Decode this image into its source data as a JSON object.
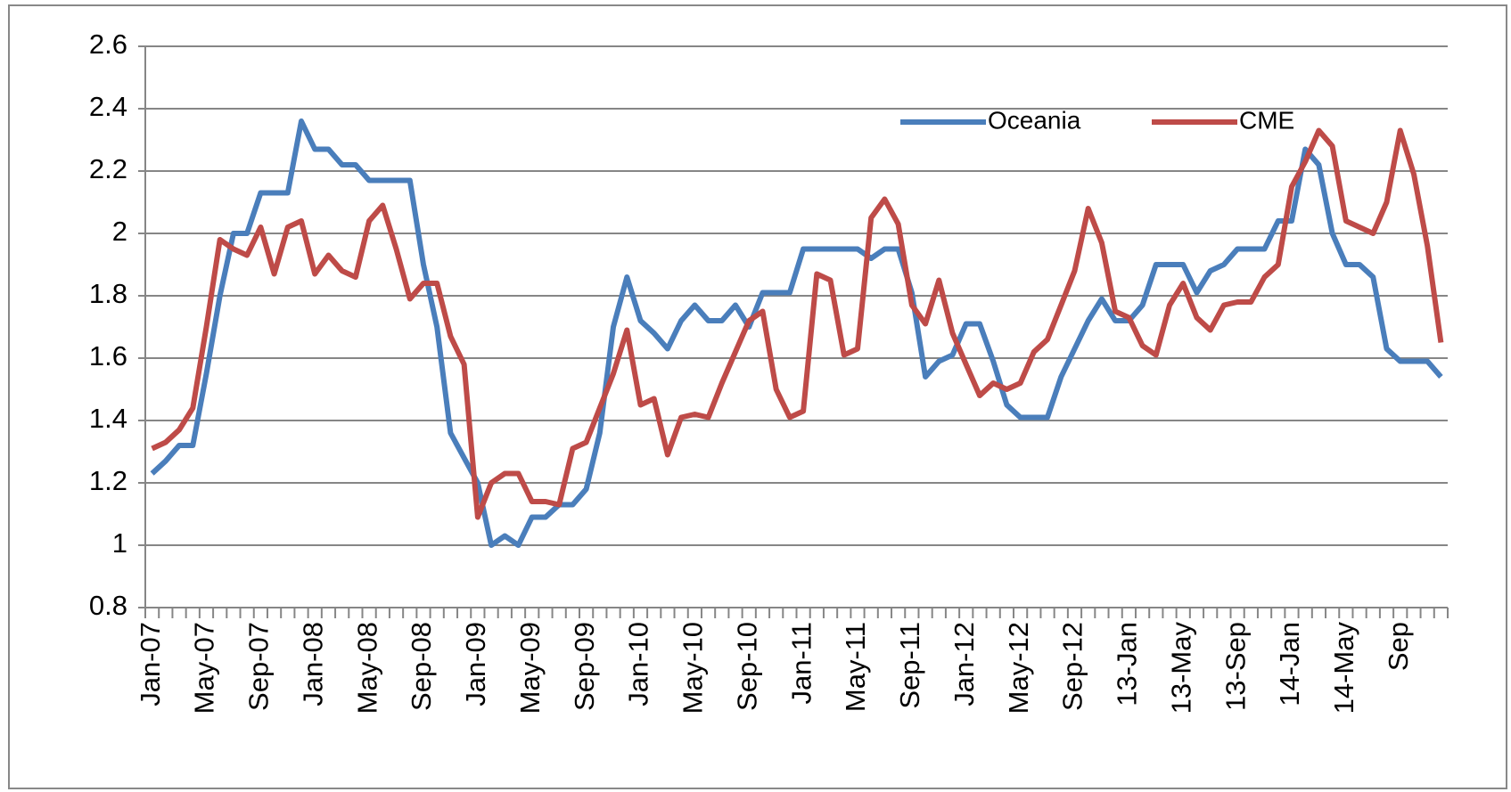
{
  "chart_data": {
    "type": "line",
    "categories": [
      "Jan-07",
      null,
      null,
      null,
      "May-07",
      null,
      null,
      null,
      "Sep-07",
      null,
      null,
      null,
      "Jan-08",
      null,
      null,
      null,
      "May-08",
      null,
      null,
      null,
      "Sep-08",
      null,
      null,
      null,
      "Jan-09",
      null,
      null,
      null,
      "May-09",
      null,
      null,
      null,
      "Sep-09",
      null,
      null,
      null,
      "Jan-10",
      null,
      null,
      null,
      "May-10",
      null,
      null,
      null,
      "Sep-10",
      null,
      null,
      null,
      "Jan-11",
      null,
      null,
      null,
      "May-11",
      null,
      null,
      null,
      "Sep-11",
      null,
      null,
      null,
      "Jan-12",
      null,
      null,
      null,
      "May-12",
      null,
      null,
      null,
      "Sep-12",
      null,
      null,
      null,
      "13-Jan",
      null,
      null,
      null,
      "13-May",
      null,
      null,
      null,
      "13-Sep",
      null,
      null,
      null,
      "14-Jan",
      null,
      null,
      null,
      "14-May",
      null,
      null,
      null,
      "Sep",
      null,
      null,
      null
    ],
    "series": [
      {
        "name": "Oceania",
        "color": "#4a7ebb",
        "values": [
          1.23,
          1.27,
          1.32,
          1.32,
          1.55,
          1.8,
          2.0,
          2.0,
          2.13,
          2.13,
          2.13,
          2.36,
          2.27,
          2.27,
          2.22,
          2.22,
          2.17,
          2.17,
          2.17,
          2.17,
          1.9,
          1.7,
          1.36,
          1.28,
          1.2,
          1.0,
          1.03,
          1.0,
          1.09,
          1.09,
          1.13,
          1.13,
          1.18,
          1.36,
          1.7,
          1.86,
          1.72,
          1.68,
          1.63,
          1.72,
          1.77,
          1.72,
          1.72,
          1.77,
          1.7,
          1.81,
          1.81,
          1.81,
          1.95,
          1.95,
          1.95,
          1.95,
          1.95,
          1.92,
          1.95,
          1.95,
          1.81,
          1.54,
          1.59,
          1.61,
          1.71,
          1.71,
          1.59,
          1.45,
          1.41,
          1.41,
          1.41,
          1.54,
          1.63,
          1.72,
          1.79,
          1.72,
          1.72,
          1.77,
          1.9,
          1.9,
          1.9,
          1.81,
          1.88,
          1.9,
          1.95,
          1.95,
          1.95,
          2.04,
          2.04,
          2.27,
          2.22,
          2.0,
          1.9,
          1.9,
          1.86,
          1.63,
          1.59,
          1.59,
          1.59,
          1.54
        ]
      },
      {
        "name": "CME",
        "color": "#be4b48",
        "values": [
          1.31,
          1.33,
          1.37,
          1.44,
          1.7,
          1.98,
          1.95,
          1.93,
          2.02,
          1.87,
          2.02,
          2.04,
          1.87,
          1.93,
          1.88,
          1.86,
          2.04,
          2.09,
          1.95,
          1.79,
          1.84,
          1.84,
          1.67,
          1.58,
          1.09,
          1.2,
          1.23,
          1.23,
          1.14,
          1.14,
          1.13,
          1.31,
          1.33,
          1.44,
          1.55,
          1.69,
          1.45,
          1.47,
          1.29,
          1.41,
          1.42,
          1.41,
          1.52,
          1.62,
          1.72,
          1.75,
          1.5,
          1.41,
          1.43,
          1.87,
          1.85,
          1.61,
          1.63,
          2.05,
          2.11,
          2.03,
          1.77,
          1.71,
          1.85,
          1.68,
          1.58,
          1.48,
          1.52,
          1.5,
          1.52,
          1.62,
          1.66,
          1.77,
          1.88,
          2.08,
          1.97,
          1.75,
          1.73,
          1.64,
          1.61,
          1.77,
          1.84,
          1.73,
          1.69,
          1.77,
          1.78,
          1.78,
          1.86,
          1.9,
          2.15,
          2.23,
          2.33,
          2.28,
          2.04,
          2.02,
          2.0,
          2.1,
          2.33,
          2.19,
          1.96,
          1.65
        ]
      }
    ],
    "ylim": [
      0.8,
      2.6
    ],
    "yticks": [
      0.8,
      1,
      1.2,
      1.4,
      1.6,
      1.8,
      2,
      2.2,
      2.4,
      2.6
    ],
    "grid": true,
    "legend": "top-right"
  }
}
